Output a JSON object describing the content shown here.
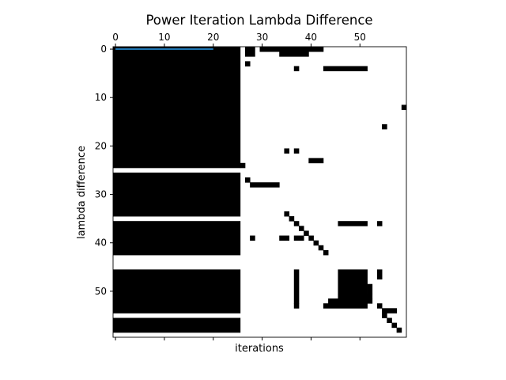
{
  "chart_data": {
    "type": "heatmap",
    "title": "Power Iteration Lambda Difference",
    "xlabel": "iterations",
    "ylabel": "lambda difference",
    "xlim": [
      -0.5,
      59.5
    ],
    "ylim": [
      59.5,
      -0.5
    ],
    "x_ticks": [
      0,
      10,
      20,
      30,
      40,
      50
    ],
    "y_ticks": [
      0,
      10,
      20,
      30,
      40,
      50
    ],
    "x_tick_labels": [
      "0",
      "10",
      "20",
      "30",
      "40",
      "50"
    ],
    "y_tick_labels": [
      "0",
      "10",
      "20",
      "30",
      "40",
      "50"
    ],
    "x_tick_position": "top",
    "colors": {
      "filled": "#000000",
      "empty": "#ffffff",
      "line": "#1f77b4"
    },
    "line_series": {
      "x": [
        0,
        20
      ],
      "y": [
        0,
        0
      ]
    },
    "cells": [
      [
        0,
        0,
        26,
        25
      ],
      [
        0,
        26,
        26,
        9
      ],
      [
        0,
        36,
        26,
        7
      ],
      [
        0,
        46,
        26,
        9
      ],
      [
        0,
        56,
        26,
        3
      ],
      [
        26,
        24,
        1,
        1
      ],
      [
        27,
        0,
        2,
        2
      ],
      [
        27,
        3,
        1,
        1
      ],
      [
        27,
        27,
        1,
        1
      ],
      [
        28,
        28,
        6,
        1
      ],
      [
        30,
        0,
        4,
        1
      ],
      [
        34,
        0,
        6,
        2
      ],
      [
        40,
        0,
        3,
        1
      ],
      [
        35,
        34,
        1,
        1
      ],
      [
        36,
        35,
        1,
        1
      ],
      [
        37,
        36,
        1,
        1
      ],
      [
        38,
        37,
        1,
        1
      ],
      [
        39,
        38,
        1,
        1
      ],
      [
        40,
        39,
        1,
        1
      ],
      [
        41,
        40,
        1,
        1
      ],
      [
        42,
        41,
        1,
        1
      ],
      [
        43,
        42,
        1,
        1
      ],
      [
        37,
        4,
        1,
        1
      ],
      [
        43,
        4,
        9,
        1
      ],
      [
        35,
        21,
        1,
        1
      ],
      [
        37,
        21,
        1,
        1
      ],
      [
        40,
        23,
        3,
        1
      ],
      [
        46,
        36,
        6,
        1
      ],
      [
        54,
        36,
        1,
        1
      ],
      [
        28,
        39,
        1,
        1
      ],
      [
        34,
        39,
        2,
        1
      ],
      [
        37,
        39,
        2,
        1
      ],
      [
        37,
        46,
        1,
        7
      ],
      [
        37,
        53,
        1,
        1
      ],
      [
        46,
        46,
        6,
        5
      ],
      [
        46,
        51,
        7,
        1
      ],
      [
        44,
        52,
        9,
        1
      ],
      [
        43,
        53,
        9,
        1
      ],
      [
        52,
        49,
        1,
        2
      ],
      [
        54,
        46,
        1,
        2
      ],
      [
        54,
        53,
        1,
        1
      ],
      [
        55,
        54,
        3,
        1
      ],
      [
        55,
        55,
        1,
        1
      ],
      [
        56,
        56,
        1,
        1
      ],
      [
        57,
        57,
        1,
        1
      ],
      [
        58,
        58,
        1,
        1
      ],
      [
        59,
        12,
        1,
        1
      ],
      [
        55,
        16,
        1,
        1
      ]
    ]
  }
}
